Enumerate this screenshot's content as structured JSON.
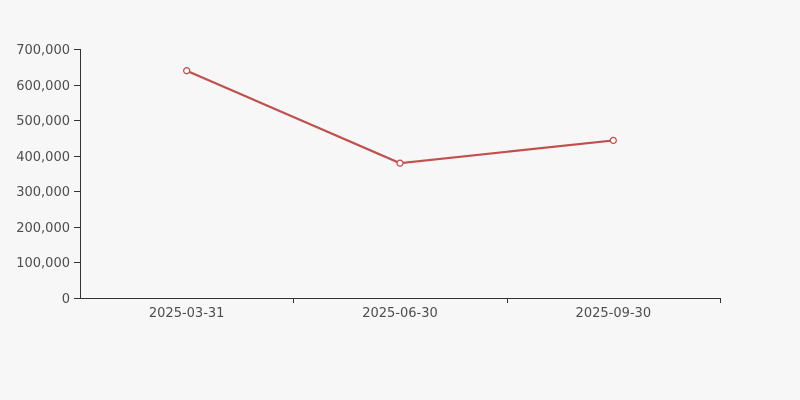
{
  "page": {
    "background": "#f7f7f7"
  },
  "chart_data": {
    "type": "line",
    "title": "",
    "xlabel": "",
    "ylabel": "",
    "categories": [
      "2025-03-31",
      "2025-06-30",
      "2025-09-30"
    ],
    "series": [
      {
        "values": [
          639000,
          379000,
          443000
        ],
        "color": "#c0504d",
        "marker": "open-circle",
        "marker_fill": "#ffffff"
      }
    ],
    "ylim": [
      0,
      700000
    ],
    "ytick_step": 100000,
    "ytick_labels": [
      "0",
      "100,000",
      "200,000",
      "300,000",
      "400,000",
      "500,000",
      "600,000",
      "700,000"
    ],
    "grid": false,
    "legend": false,
    "axis_color": "#333333",
    "tick_label_color": "#4d4d4d"
  }
}
